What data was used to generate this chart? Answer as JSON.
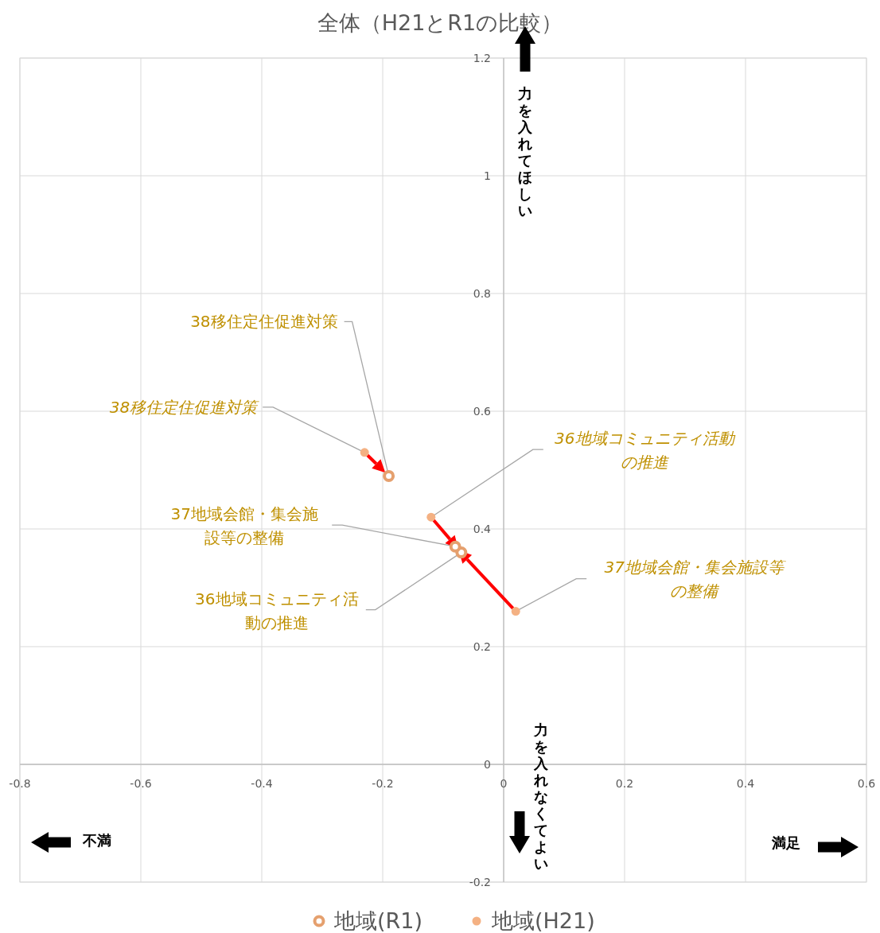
{
  "chart_data": {
    "type": "scatter",
    "title": "全体（H21とR1の比較）",
    "xlim": [
      -0.8,
      0.6
    ],
    "xticks": [
      -0.8,
      -0.6,
      -0.4,
      -0.2,
      0,
      0.2,
      0.4,
      0.6
    ],
    "ylim": [
      -0.2,
      1.2
    ],
    "yticks": [
      -0.2,
      0,
      0.2,
      0.4,
      0.6,
      0.8,
      1,
      1.2
    ],
    "grid": true,
    "legend": "bottom",
    "marker": "circle",
    "series": [
      {
        "name": "地域(R1)",
        "color": "#e5a06e",
        "x": [
          -0.07,
          -0.08,
          -0.19
        ],
        "values": [
          0.36,
          0.37,
          0.49
        ]
      },
      {
        "name": "地域(H21)",
        "color": "#f4b183",
        "x": [
          -0.12,
          0.02,
          -0.23
        ],
        "values": [
          0.42,
          0.26,
          0.53
        ]
      }
    ],
    "annotations": [
      {
        "text": "38移住定住促進対策",
        "x": -0.19,
        "y": 0.49
      },
      {
        "text": "38移住定住促進対策",
        "x": -0.23,
        "y": 0.53
      },
      {
        "text": "36地域コミュニティ活動の推進",
        "x": -0.12,
        "y": 0.42
      },
      {
        "text": "37地域会館・集会施設等の整備",
        "x": -0.08,
        "y": 0.37
      },
      {
        "text": "36地域コミュニティ活動の推進",
        "x": -0.07,
        "y": 0.36
      },
      {
        "text": "37地域会館・集会施設等の整備",
        "x": 0.02,
        "y": 0.26
      },
      "力を入れてほしい",
      "力を入れなくてよい",
      "不満",
      "満足"
    ]
  }
}
